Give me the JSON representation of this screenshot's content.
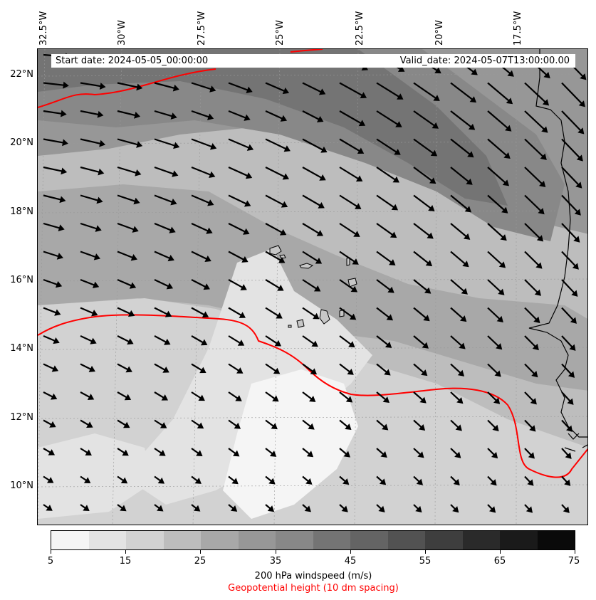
{
  "header": {
    "start_date": "Start date: 2024-05-05_00:00:00",
    "valid_date": "Valid_date: 2024-05-07T13:00:00.00"
  },
  "longitude_labels": [
    "32.5°W",
    "30°W",
    "27.5°W",
    "25°W",
    "22.5°W",
    "20°W",
    "17.5°W"
  ],
  "latitude_labels": [
    "22°N",
    "20°N",
    "18°N",
    "16°N",
    "14°N",
    "12°N",
    "10°N"
  ],
  "colorbar": {
    "ticks": [
      "5",
      "15",
      "25",
      "35",
      "45",
      "55",
      "75"
    ],
    "ticks_extra": [
      "65"
    ],
    "label": "200 hPa windspeed (m/s)",
    "contour_label": "Geopotential height (10 dm spacing)",
    "colors": [
      "#f5f5f5",
      "#e3e3e3",
      "#d2d2d2",
      "#bdbdbd",
      "#a8a8a8",
      "#979797",
      "#888888",
      "#747474",
      "#646464",
      "#525252",
      "#3e3e3e",
      "#2a2a2a",
      "#1a1a1a",
      "#0a0a0a"
    ]
  },
  "map": {
    "variable": "200 hPa windspeed",
    "units": "m/s",
    "wind_direction": "westerly to north-westerly flow, turning southeastward",
    "max_wind_region": "north-east",
    "contour_color": "#ff0000",
    "coastline_color": "#000000"
  }
}
